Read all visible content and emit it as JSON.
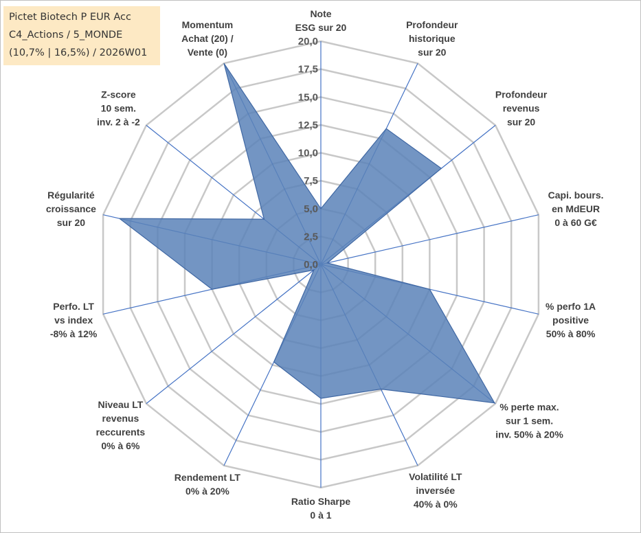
{
  "title_box": {
    "line1": "Pictet Biotech P EUR Acc",
    "line2": "C4_Actions / 5_MONDE",
    "line3": "(10,7% | 16,5%) / 2026W01"
  },
  "chart_data": {
    "type": "radar",
    "title": "Pictet Biotech P EUR Acc",
    "rmin": 0,
    "rmax": 20,
    "tick_step": 2.5,
    "tick_labels": [
      "0,0",
      "2,5",
      "5,0",
      "7,5",
      "10,0",
      "12,5",
      "15,0",
      "17,5",
      "20,0"
    ],
    "axes": [
      [
        "Note",
        "ESG sur 20"
      ],
      [
        "Profondeur",
        "historique",
        "sur 20"
      ],
      [
        "Profondeur",
        "revenus",
        "sur 20"
      ],
      [
        "Capi. bours.",
        "en MdEUR",
        "0 à 60 G€"
      ],
      [
        "% perfo 1A",
        "positive",
        "50% à 80%"
      ],
      [
        "% perte max.",
        "sur 1 sem.",
        "inv. 50% à 20%"
      ],
      [
        "Volatilité LT",
        "inversée",
        "40% à 0%"
      ],
      [
        "Ratio Sharpe",
        "0 à 1"
      ],
      [
        "Rendement LT",
        "0% à 20%"
      ],
      [
        "Niveau LT",
        "revenus",
        "reccurents",
        "0% à 6%"
      ],
      [
        "Perfo. LT",
        "vs index",
        "-8% à 12%"
      ],
      [
        "Régularité",
        "croissance",
        "sur 20"
      ],
      [
        "Z-score",
        "10 sem.",
        "inv. 2 à -2"
      ],
      [
        "Momentum",
        "Achat (20) /",
        "Vente (0)"
      ]
    ],
    "series": [
      {
        "name": "Pictet Biotech P EUR Acc",
        "values": [
          5.0,
          13.5,
          13.8,
          0.6,
          10.0,
          19.9,
          12.4,
          12.0,
          9.7,
          0.8,
          10.0,
          18.5,
          6.5,
          20.0
        ],
        "fill": "#5a82b8",
        "stroke": "#3f67a3"
      }
    ],
    "colors": {
      "grid": "#c8c8c8",
      "spoke": "#4472c4"
    }
  }
}
